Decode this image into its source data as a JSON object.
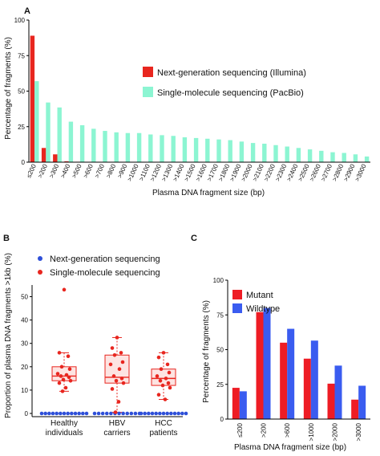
{
  "chart_data": [
    {
      "panel": "A",
      "type": "bar",
      "xlabel": "Plasma DNA fragment size (bp)",
      "ylabel": "Percentage of fragments (%)",
      "ylim": [
        0,
        100
      ],
      "yticks": [
        0,
        25,
        50,
        75,
        100
      ],
      "categories": [
        "≤200",
        ">200",
        ">300",
        ">400",
        ">500",
        ">600",
        ">700",
        ">800",
        ">900",
        ">1000",
        ">1100",
        ">1200",
        ">1300",
        ">1400",
        ">1500",
        ">1600",
        ">1700",
        ">1800",
        ">1900",
        ">2000",
        ">2100",
        ">2200",
        ">2300",
        ">2400",
        ">2500",
        ">2600",
        ">2700",
        ">2800",
        ">2900",
        ">3000"
      ],
      "series": [
        {
          "name": "Next-generation sequencing (Illumina)",
          "color": "#e8261f",
          "values": [
            89,
            10,
            5.5,
            0.6,
            0.3,
            0.2,
            0.1,
            0.1,
            0.1,
            0.1,
            0.05,
            0.05,
            0.05,
            0.05,
            0.05,
            0.05,
            0.05,
            0.05,
            0.05,
            0.05,
            0.05,
            0.05,
            0.05,
            0.05,
            0.05,
            0.05,
            0.05,
            0.05,
            0.05,
            0.05
          ]
        },
        {
          "name": "Single-molecule sequencing (PacBio)",
          "color": "#8cf5d2",
          "values": [
            57,
            42,
            38.5,
            28.5,
            26,
            23.5,
            22,
            21,
            20.5,
            20.5,
            19.5,
            19,
            18.5,
            17.5,
            17,
            16.5,
            16,
            15.5,
            14.5,
            13.5,
            13,
            12,
            11,
            10,
            9,
            8,
            7,
            6.5,
            5.5,
            4
          ]
        }
      ],
      "legend_position": "right"
    },
    {
      "panel": "B",
      "type": "scatter",
      "ylabel": "Proportion of plasma DNA fragments >1kb (%)",
      "ylim": [
        0,
        55
      ],
      "yticks": [
        0,
        10,
        20,
        30,
        40,
        50
      ],
      "categories": [
        "Healthy\nindividuals",
        "HBV\ncarriers",
        "HCC\npatients"
      ],
      "series": [
        {
          "name": "Next-generation sequencing",
          "color": "#2e4fd8",
          "points": [
            [
              0,
              [
                0,
                0,
                0,
                0,
                0,
                0,
                0,
                0,
                0,
                0,
                0,
                0,
                0
              ]
            ],
            [
              1,
              [
                0,
                0,
                0,
                0,
                0,
                0,
                0,
                0,
                0,
                0,
                0,
                0
              ]
            ],
            [
              2,
              [
                0,
                0,
                0,
                0,
                0,
                0,
                0,
                0,
                0,
                0,
                0,
                0,
                0
              ]
            ]
          ]
        },
        {
          "name": "Single-molecule sequencing",
          "color": "#e8261f",
          "points": [
            [
              0,
              [
                53,
                26,
                24.5,
                20,
                19,
                17,
                16.5,
                16,
                15.5,
                14.5,
                14,
                13,
                11,
                9.5
              ]
            ],
            [
              1,
              [
                32.5,
                28,
                26,
                25,
                22,
                21,
                19,
                16,
                15,
                14,
                13,
                10.5,
                5,
                0.5
              ]
            ],
            [
              2,
              [
                26,
                24,
                21,
                19,
                17.5,
                16,
                15,
                14,
                13,
                12,
                11,
                8,
                6
              ]
            ]
          ]
        }
      ],
      "boxes": [
        {
          "category": 0,
          "q1": 14,
          "median": 16,
          "q3": 20,
          "whisker_low": 9.5,
          "whisker_high": 26
        },
        {
          "category": 1,
          "q1": 13,
          "median": 15.5,
          "q3": 25,
          "whisker_low": 0.5,
          "whisker_high": 32.5
        },
        {
          "category": 2,
          "q1": 12,
          "median": 15,
          "q3": 19,
          "whisker_low": 6,
          "whisker_high": 26
        }
      ],
      "legend_position": "top"
    },
    {
      "panel": "C",
      "type": "bar",
      "xlabel": "Plasma DNA fragment size (bp)",
      "ylabel": "Percentage of fragments (%)",
      "ylim": [
        0,
        100
      ],
      "yticks": [
        0,
        25,
        50,
        75,
        100
      ],
      "categories": [
        "≤200",
        ">200",
        ">600",
        ">1000",
        ">2000",
        ">3000"
      ],
      "series": [
        {
          "name": "Mutant",
          "color": "#ee1c24",
          "values": [
            22.5,
            77,
            55,
            43.5,
            25.5,
            14
          ]
        },
        {
          "name": "Wildtype",
          "color": "#3a5cf0",
          "values": [
            20,
            80,
            65,
            56.5,
            38.5,
            24
          ]
        }
      ],
      "legend_position": "top-left"
    }
  ]
}
